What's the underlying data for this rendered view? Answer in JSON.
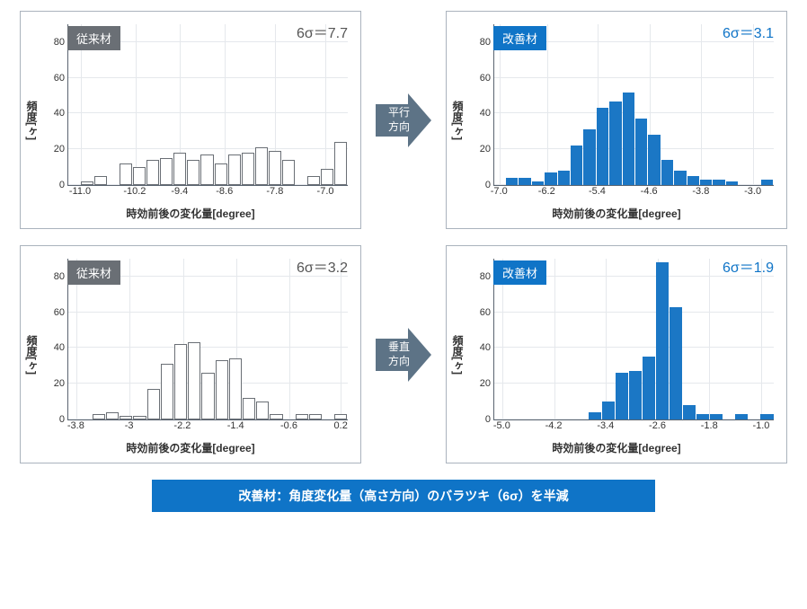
{
  "colors": {
    "panel_border": "#aab3bd",
    "grid": "#e5e8ec",
    "axis": "#5a6470",
    "badge_gray": "#6a6f75",
    "badge_blue": "#0f74c7",
    "bar_white_fill": "#ffffff",
    "bar_white_stroke": "#6a6f75",
    "bar_blue_fill": "#1b77c5",
    "arrow_fill": "#5d7386",
    "caption_bg": "#0f74c7",
    "sigma_gray": "#555555",
    "sigma_blue": "#0f74c7"
  },
  "common": {
    "xlabel": "時効前後の変化量[degree]",
    "ylabel": "頻度[ヶ]",
    "ymax": 90,
    "yticks": [
      0,
      20,
      40,
      60,
      80
    ]
  },
  "arrows": [
    {
      "label": "平行\n方向"
    },
    {
      "label": "垂直\n方向"
    }
  ],
  "caption": "改善材：角度変化量（高さ方向）のバラツキ（6σ）を半減",
  "charts": [
    {
      "badge": "従来材",
      "badge_bg": "badge_gray",
      "sigma": "6σ＝7.7",
      "sigma_color": "sigma_gray",
      "bar_style": "white",
      "xticks": [
        {
          "pos": 0.045,
          "label": "-11.0"
        },
        {
          "pos": 0.24,
          "label": "-10.2"
        },
        {
          "pos": 0.4,
          "label": "-9.4"
        },
        {
          "pos": 0.56,
          "label": "-8.6"
        },
        {
          "pos": 0.74,
          "label": "-7.8"
        },
        {
          "pos": 0.92,
          "label": "-7.0"
        }
      ],
      "values": [
        0,
        2,
        5,
        0,
        12,
        10,
        14,
        15,
        18,
        14,
        17,
        12,
        17,
        18,
        21,
        19,
        14,
        0,
        5,
        9,
        24
      ]
    },
    {
      "badge": "改善材",
      "badge_bg": "badge_blue",
      "sigma": "6σ＝3.1",
      "sigma_color": "sigma_blue",
      "bar_style": "blue",
      "xticks": [
        {
          "pos": 0.02,
          "label": "-7.0"
        },
        {
          "pos": 0.19,
          "label": "-6.2"
        },
        {
          "pos": 0.37,
          "label": "-5.4"
        },
        {
          "pos": 0.555,
          "label": "-4.6"
        },
        {
          "pos": 0.74,
          "label": "-3.8"
        },
        {
          "pos": 0.925,
          "label": "-3.0"
        }
      ],
      "values": [
        0,
        4,
        4,
        2,
        7,
        8,
        22,
        31,
        43,
        47,
        52,
        37,
        28,
        14,
        8,
        5,
        3,
        3,
        2,
        0,
        0,
        3
      ]
    },
    {
      "badge": "従来材",
      "badge_bg": "badge_gray",
      "sigma": "6σ＝3.2",
      "sigma_color": "sigma_gray",
      "bar_style": "white",
      "xticks": [
        {
          "pos": 0.03,
          "label": "-3.8"
        },
        {
          "pos": 0.22,
          "label": "-3"
        },
        {
          "pos": 0.41,
          "label": "-2.2"
        },
        {
          "pos": 0.6,
          "label": "-1.4"
        },
        {
          "pos": 0.79,
          "label": "-0.6"
        },
        {
          "pos": 0.975,
          "label": "0.2"
        }
      ],
      "values": [
        0,
        0,
        3,
        4,
        2,
        2,
        17,
        31,
        42,
        43,
        26,
        33,
        34,
        12,
        10,
        3,
        0,
        3,
        3,
        0,
        3
      ]
    },
    {
      "badge": "改善材",
      "badge_bg": "badge_blue",
      "sigma": "6σ＝1.9",
      "sigma_color": "sigma_blue",
      "bar_style": "blue",
      "xticks": [
        {
          "pos": 0.03,
          "label": "-5.0"
        },
        {
          "pos": 0.215,
          "label": "-4.2"
        },
        {
          "pos": 0.4,
          "label": "-3.4"
        },
        {
          "pos": 0.585,
          "label": "-2.6"
        },
        {
          "pos": 0.77,
          "label": "-1.8"
        },
        {
          "pos": 0.955,
          "label": "-1.0"
        }
      ],
      "values": [
        0,
        0,
        0,
        0,
        0,
        0,
        0,
        0,
        4,
        10,
        26,
        27,
        35,
        88,
        63,
        8,
        3,
        3,
        0,
        3,
        0,
        3
      ]
    }
  ]
}
